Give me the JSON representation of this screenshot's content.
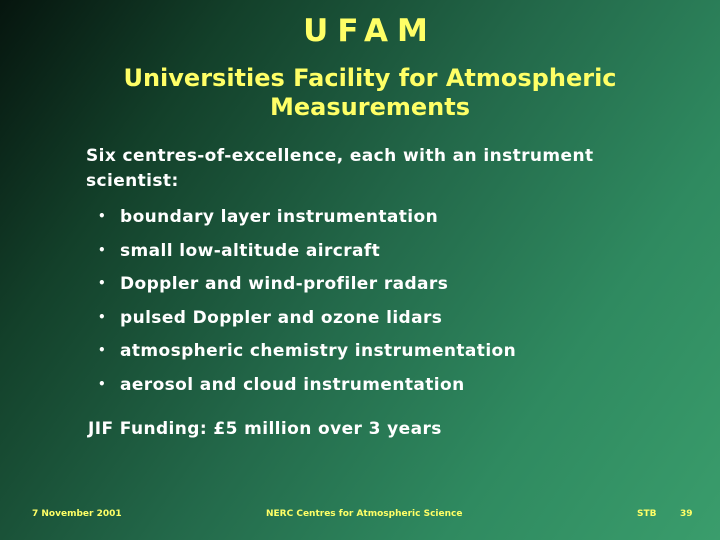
{
  "slide": {
    "title": "UFAM",
    "subtitle_lines": [
      "Universities Facility  for Atmospheric",
      "Measurements"
    ],
    "intro_lines": [
      "Six centres-of-excellence, each with an instrument",
      "scientist:"
    ],
    "bullet_symbol": "•",
    "bullets": [
      "boundary layer instrumentation",
      "small low-altitude aircraft",
      "Doppler and wind-profiler radars",
      "pulsed Doppler and ozone lidars",
      "atmospheric chemistry instrumentation",
      "aerosol and cloud instrumentation"
    ],
    "funding": "JIF Funding: £5 million over 3 years"
  },
  "footer": {
    "date": "7 November 2001",
    "center": "NERC Centres for Atmospheric Science",
    "initials": "STB",
    "page": "39"
  },
  "colors": {
    "title": "#ffff66",
    "body_text": "#ffffff",
    "background_dark": "#06150e",
    "background_light": "#3a9d6c"
  }
}
